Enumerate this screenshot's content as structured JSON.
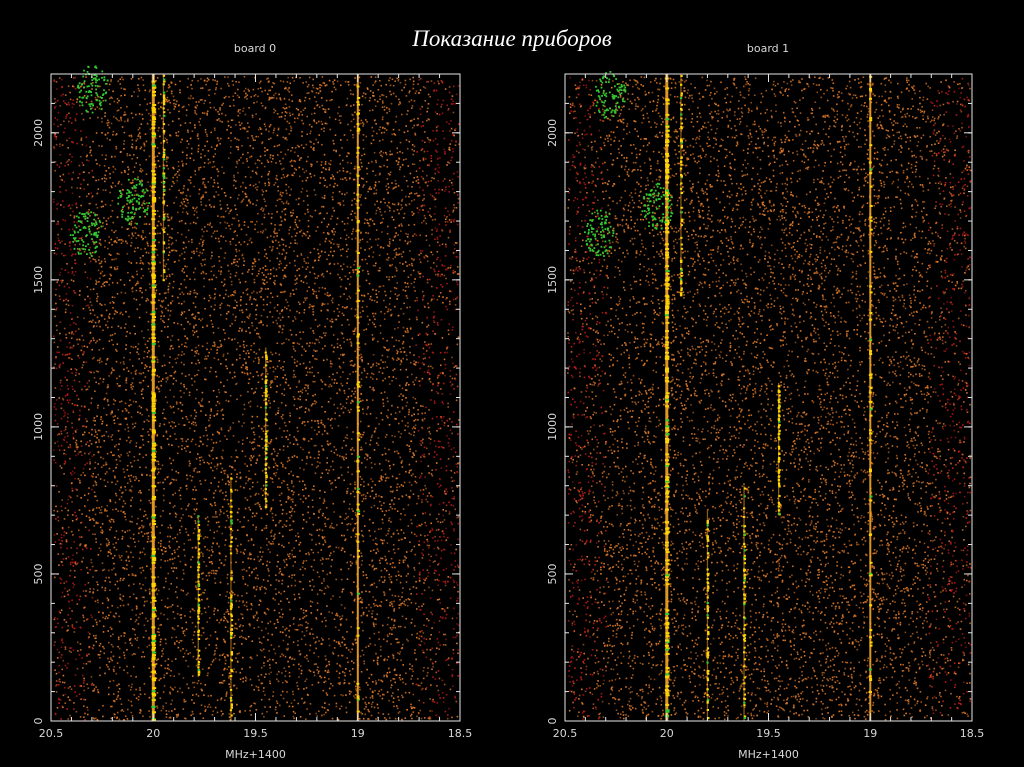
{
  "slide": {
    "title": "Показание приборов"
  },
  "colors": {
    "background": "#000000",
    "axis": "#e6e6e6",
    "noise": "#e07a2a",
    "edge": "#c21a1a",
    "line": "#f5a623",
    "hot": "#ffd400",
    "rfi": "#32c832"
  },
  "chart_data": [
    {
      "type": "heatmap",
      "title": "board 0",
      "xlabel": "MHz+1400",
      "ylabel": "",
      "xlim": [
        20.5,
        18.5
      ],
      "x_axis_reversed": true,
      "ylim": [
        0,
        2200
      ],
      "xticks": [
        "20.5",
        "20",
        "19.5",
        "19",
        "18.5"
      ],
      "yticks": [
        "0",
        "500",
        "1000",
        "1500",
        "2000"
      ],
      "spectral_lines": [
        {
          "freq": 20.0,
          "y_from": 0,
          "y_to": 2200,
          "brightness": "strong"
        },
        {
          "freq": 19.78,
          "y_from": 150,
          "y_to": 700,
          "brightness": "weak"
        },
        {
          "freq": 19.62,
          "y_from": 0,
          "y_to": 830,
          "brightness": "weak"
        },
        {
          "freq": 19.45,
          "y_from": 720,
          "y_to": 1270,
          "brightness": "weak"
        },
        {
          "freq": 19.0,
          "y_from": 0,
          "y_to": 2200,
          "brightness": "medium"
        },
        {
          "freq": 19.95,
          "y_from": 1500,
          "y_to": 2200,
          "brightness": "weak"
        }
      ],
      "rfi_patches": [
        {
          "freq": 20.3,
          "y": 2150
        },
        {
          "freq": 20.33,
          "y": 1660
        },
        {
          "freq": 20.1,
          "y": 1770
        }
      ]
    },
    {
      "type": "heatmap",
      "title": "board 1",
      "xlabel": "MHz+1400",
      "ylabel": "",
      "xlim": [
        20.5,
        18.5
      ],
      "x_axis_reversed": true,
      "ylim": [
        0,
        2200
      ],
      "xticks": [
        "20.5",
        "20",
        "19.5",
        "19",
        "18.5"
      ],
      "yticks": [
        "0",
        "500",
        "1000",
        "1500",
        "2000"
      ],
      "spectral_lines": [
        {
          "freq": 20.0,
          "y_from": 0,
          "y_to": 2200,
          "brightness": "strong"
        },
        {
          "freq": 19.8,
          "y_from": 0,
          "y_to": 720,
          "brightness": "weak"
        },
        {
          "freq": 19.62,
          "y_from": 0,
          "y_to": 800,
          "brightness": "weak"
        },
        {
          "freq": 19.45,
          "y_from": 700,
          "y_to": 1150,
          "brightness": "weak"
        },
        {
          "freq": 19.0,
          "y_from": 0,
          "y_to": 2200,
          "brightness": "medium"
        },
        {
          "freq": 19.93,
          "y_from": 1450,
          "y_to": 2200,
          "brightness": "weak"
        }
      ],
      "rfi_patches": [
        {
          "freq": 20.28,
          "y": 2130
        },
        {
          "freq": 20.33,
          "y": 1660
        },
        {
          "freq": 20.05,
          "y": 1750
        }
      ]
    }
  ]
}
